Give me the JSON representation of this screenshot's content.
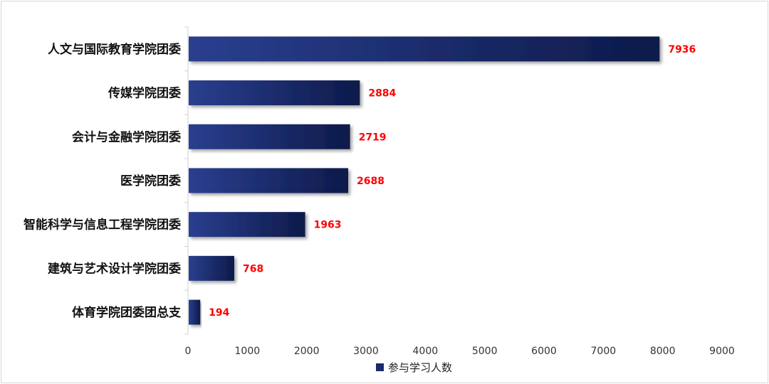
{
  "chart_data": {
    "type": "bar",
    "orientation": "horizontal",
    "categories": [
      "人文与国际教育学院团委",
      "传媒学院团委",
      "会计与金融学院团委",
      "医学院团委",
      "智能科学与信息工程学院团委",
      "建筑与艺术设计学院团委",
      "体育学院团委团总支"
    ],
    "series": [
      {
        "name": "参与学习人数",
        "values": [
          7936,
          2884,
          2719,
          2688,
          1963,
          768,
          194
        ]
      }
    ],
    "xlim": [
      0,
      9000
    ],
    "xticks": [
      "0",
      "1000",
      "2000",
      "3000",
      "4000",
      "5000",
      "6000",
      "7000",
      "8000",
      "9000"
    ],
    "grid": false,
    "legend_position": "bottom",
    "colors": {
      "bar_light": "#2a3f8f",
      "bar_dark": "#0d1a4a",
      "data_label": "#ff0000",
      "legend_marker": "#1b2a6b"
    }
  }
}
